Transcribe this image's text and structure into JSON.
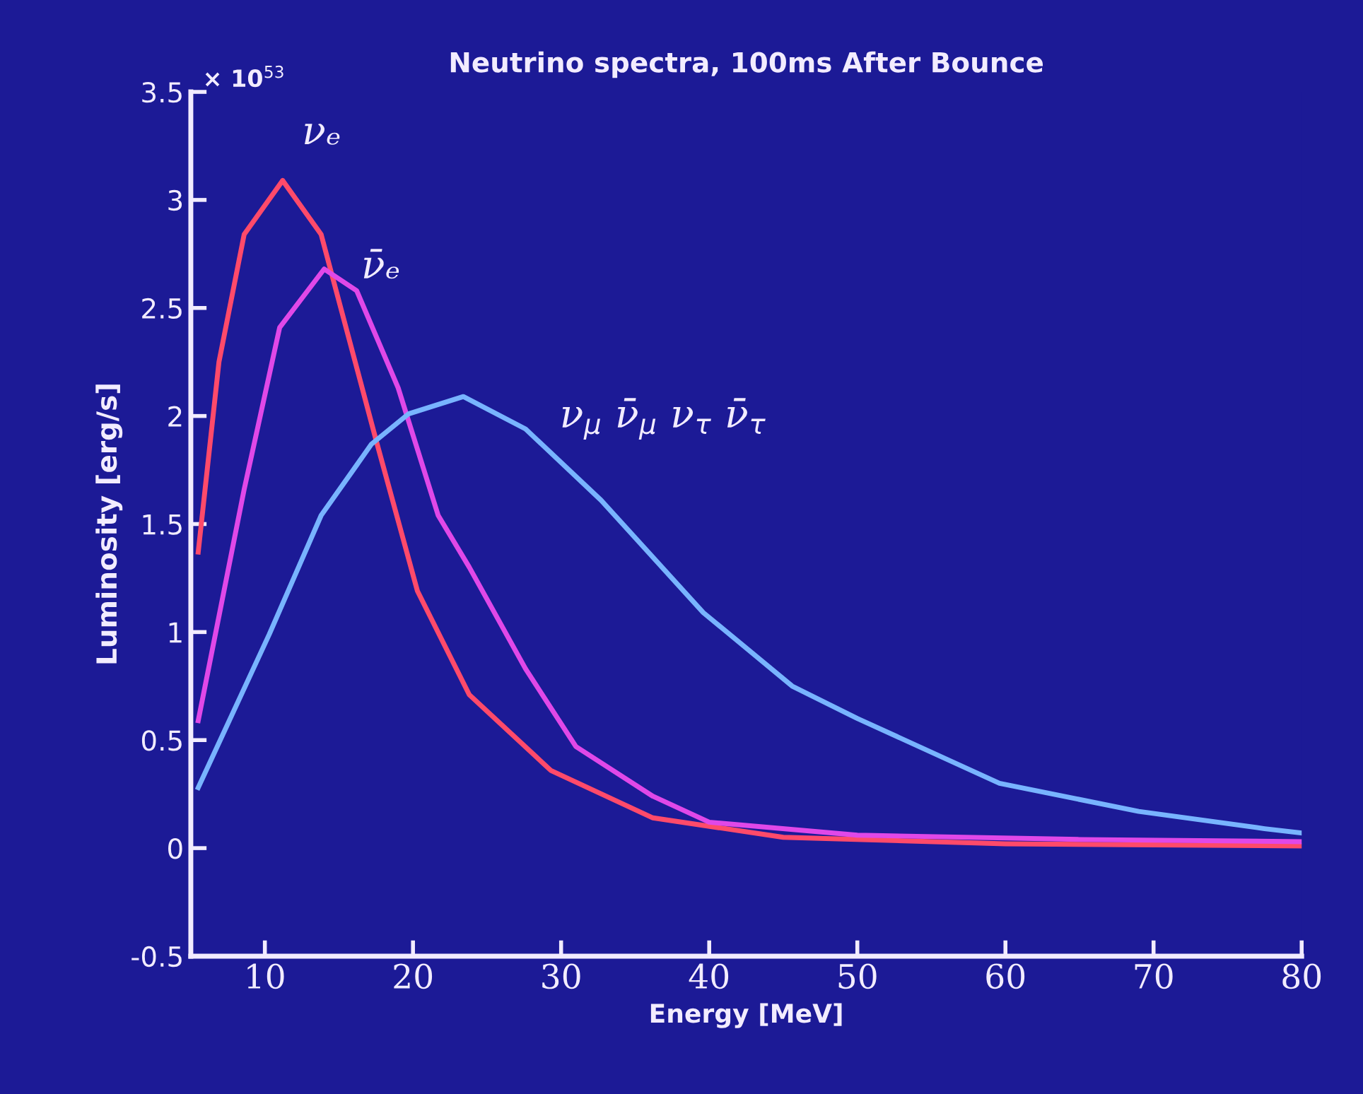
{
  "chart_data": {
    "type": "line",
    "title": "Neutrino spectra, 100ms After Bounce",
    "xlabel": "Energy [MeV]",
    "ylabel": "Luminosity [erg/s]",
    "annotations": [
      "× 10$^{53}$"
    ],
    "xlim": [
      5,
      80
    ],
    "xticks": [
      10,
      20,
      30,
      40,
      50,
      60,
      70,
      80
    ],
    "ylim": [
      -0.5,
      3.5
    ],
    "yticks": [
      -0.5,
      0,
      0.5,
      1,
      1.5,
      2,
      2.5,
      3,
      3.5
    ],
    "grid": false,
    "legend": false,
    "marker": "none",
    "line_style": "solid",
    "series": [
      {
        "name": "νₑ",
        "color": "#ff4a6a",
        "x": [
          5.5,
          6.9,
          8.6,
          11.2,
          13.8,
          17.5,
          20.3,
          23.8,
          29.3,
          36.2,
          45,
          60,
          80
        ],
        "values": [
          1.37,
          2.25,
          2.84,
          3.09,
          2.84,
          1.89,
          1.19,
          0.71,
          0.36,
          0.14,
          0.05,
          0.02,
          0.01
        ]
      },
      {
        "name": "ν̄ₑ",
        "color": "#e048e8",
        "x": [
          5.5,
          8.6,
          11.0,
          14.0,
          16.2,
          19.0,
          21.7,
          23.8,
          27.6,
          31.0,
          36.2,
          40,
          50,
          65,
          80
        ],
        "values": [
          0.59,
          1.66,
          2.41,
          2.68,
          2.58,
          2.13,
          1.54,
          1.3,
          0.83,
          0.47,
          0.24,
          0.12,
          0.06,
          0.04,
          0.03
        ]
      },
      {
        "name": "ν$_{μ}$ ν̄$_{μ}$ ν$_{τ}$ ν̄$_{τ}$",
        "color": "#78b4ff",
        "x": [
          5.5,
          10.3,
          13.8,
          17.2,
          19.7,
          23.4,
          27.6,
          32.7,
          39.6,
          45.6,
          50,
          59.6,
          69,
          77.5,
          80
        ],
        "values": [
          0.28,
          0.99,
          1.54,
          1.87,
          2.01,
          2.09,
          1.94,
          1.61,
          1.09,
          0.75,
          0.6,
          0.3,
          0.17,
          0.09,
          0.07
        ]
      }
    ]
  }
}
